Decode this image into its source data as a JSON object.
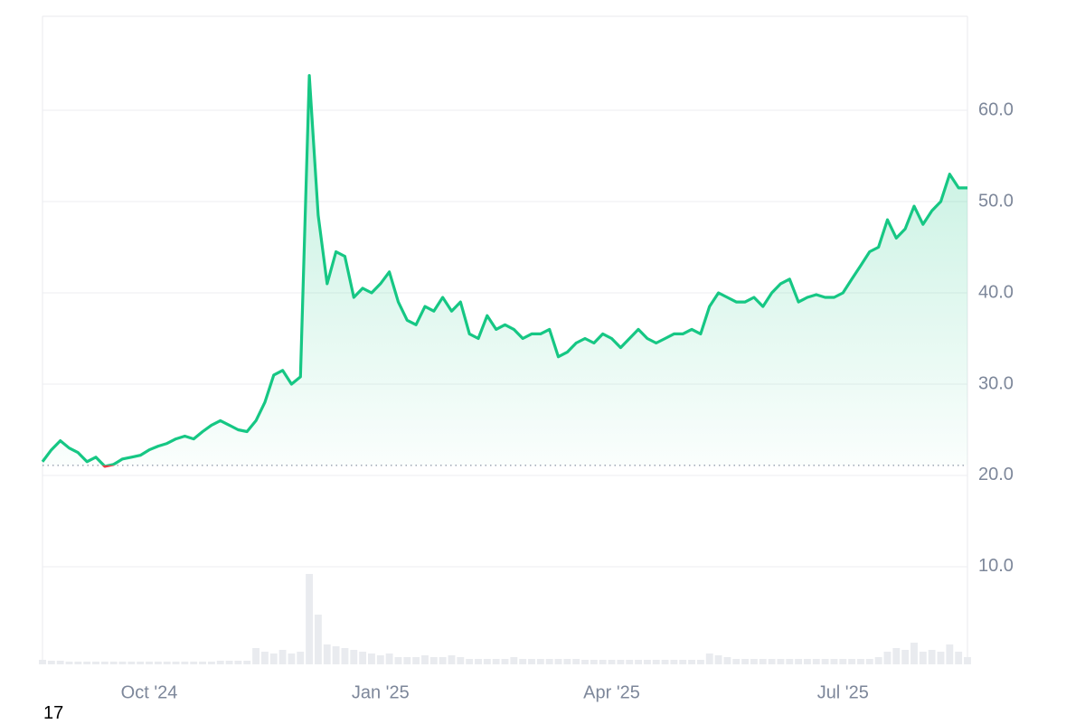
{
  "chart_data": {
    "type": "line",
    "categories": [
      null,
      null,
      null,
      null,
      null,
      null,
      null,
      null,
      null,
      null,
      null,
      null,
      "Oct '24",
      null,
      null,
      null,
      null,
      null,
      null,
      null,
      null,
      null,
      null,
      null,
      null,
      null,
      null,
      null,
      null,
      null,
      null,
      null,
      null,
      null,
      null,
      null,
      null,
      null,
      "Jan '25",
      null,
      null,
      null,
      null,
      null,
      null,
      null,
      null,
      null,
      null,
      null,
      null,
      null,
      null,
      null,
      null,
      null,
      null,
      null,
      null,
      null,
      null,
      null,
      null,
      null,
      "Apr '25",
      null,
      null,
      null,
      null,
      null,
      null,
      null,
      null,
      null,
      null,
      null,
      null,
      null,
      null,
      null,
      null,
      null,
      null,
      null,
      null,
      null,
      null,
      null,
      null,
      null,
      "Jul '25",
      null,
      null,
      null,
      null,
      null,
      null,
      null,
      null,
      null,
      null,
      null,
      null,
      null,
      null
    ],
    "values": [
      21.5,
      22.8,
      23.8,
      23.0,
      22.5,
      21.5,
      22.0,
      21.0,
      21.2,
      21.8,
      22.0,
      22.2,
      22.8,
      23.2,
      23.5,
      24.0,
      24.3,
      24.0,
      24.8,
      25.5,
      26.0,
      25.5,
      25.0,
      24.8,
      26.0,
      28.0,
      31.0,
      31.5,
      30.0,
      30.8,
      63.8,
      48.5,
      41.0,
      44.5,
      44.0,
      39.5,
      40.5,
      40.0,
      41.0,
      42.3,
      39.0,
      37.0,
      36.5,
      38.5,
      38.0,
      39.5,
      38.0,
      39.0,
      35.5,
      35.0,
      37.5,
      36.0,
      36.5,
      36.0,
      35.0,
      35.5,
      35.5,
      36.0,
      33.0,
      33.5,
      34.5,
      35.0,
      34.5,
      35.5,
      35.0,
      34.0,
      35.0,
      36.0,
      35.0,
      34.5,
      35.0,
      35.5,
      35.5,
      36.0,
      35.5,
      38.5,
      40.0,
      39.5,
      39.0,
      39.0,
      39.5,
      38.5,
      40.0,
      41.0,
      41.5,
      39.0,
      39.5,
      39.8,
      39.5,
      39.5,
      40.0,
      41.5,
      43.0,
      44.5,
      45.0,
      48.0,
      46.0,
      47.0,
      49.5,
      47.5,
      49.0,
      50.0,
      53.0,
      51.5,
      51.5
    ],
    "volume": [
      5,
      4,
      4,
      3,
      3,
      3,
      3,
      3,
      3,
      3,
      3,
      3,
      3,
      3,
      3,
      3,
      3,
      3,
      3,
      3,
      4,
      4,
      4,
      4,
      18,
      14,
      12,
      16,
      12,
      14,
      100,
      55,
      22,
      20,
      18,
      16,
      14,
      12,
      10,
      12,
      8,
      8,
      8,
      10,
      8,
      8,
      10,
      8,
      6,
      6,
      6,
      6,
      6,
      8,
      6,
      6,
      6,
      6,
      6,
      6,
      6,
      5,
      5,
      5,
      5,
      5,
      5,
      5,
      5,
      5,
      5,
      5,
      5,
      5,
      5,
      12,
      10,
      8,
      6,
      6,
      6,
      6,
      6,
      6,
      6,
      6,
      6,
      6,
      6,
      6,
      6,
      6,
      6,
      6,
      8,
      14,
      18,
      16,
      24,
      14,
      16,
      14,
      22,
      14,
      8
    ],
    "color": "#16c784",
    "down_color": "#ea3943",
    "baseline": 21.1,
    "ylim": [
      -0.7,
      70.3
    ],
    "yticks": [
      {
        "value": 10,
        "label": "10.0"
      },
      {
        "value": 20,
        "label": "20.0"
      },
      {
        "value": 30,
        "label": "30.0"
      },
      {
        "value": 40,
        "label": "40.0"
      },
      {
        "value": 50,
        "label": "50.0"
      },
      {
        "value": 60,
        "label": "60.0"
      }
    ],
    "grid": true
  },
  "footnote": "17"
}
